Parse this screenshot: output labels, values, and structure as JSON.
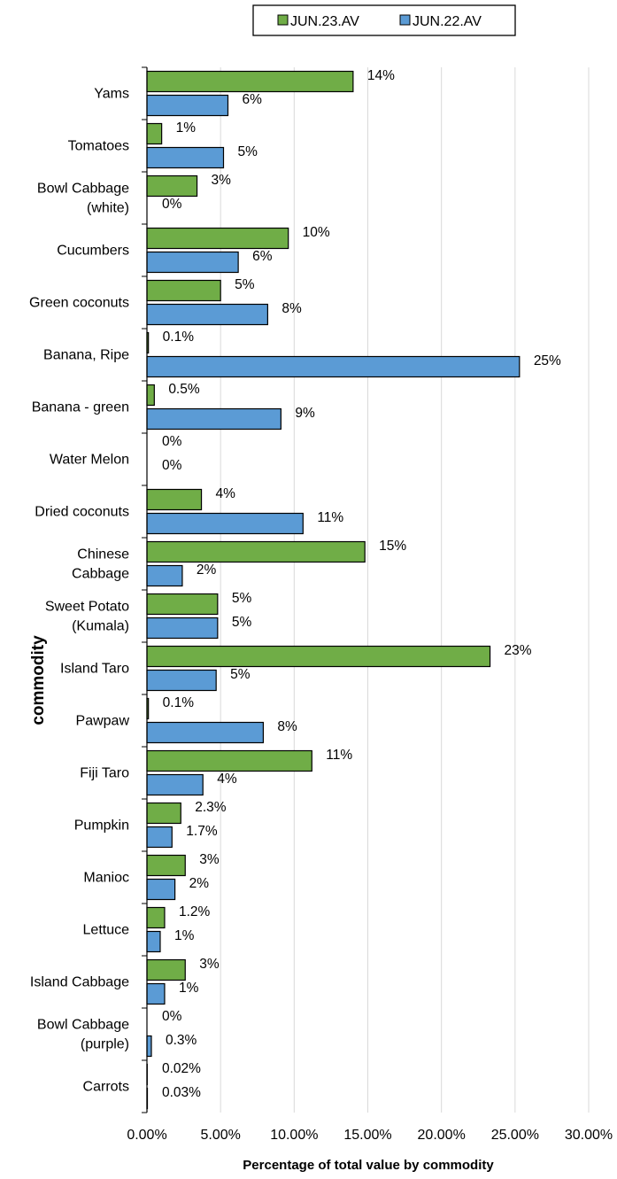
{
  "chart_data": {
    "type": "bar",
    "orientation": "horizontal",
    "categories": [
      [
        "Yams"
      ],
      [
        "Tomatoes"
      ],
      [
        "Bowl Cabbage",
        "(white)"
      ],
      [
        "Cucumbers"
      ],
      [
        "Green coconuts"
      ],
      [
        "Banana, Ripe"
      ],
      [
        "Banana - green"
      ],
      [
        "Water Melon"
      ],
      [
        "Dried coconuts"
      ],
      [
        "Chinese",
        "Cabbage"
      ],
      [
        "Sweet Potato",
        "(Kumala)"
      ],
      [
        "Island Taro"
      ],
      [
        "Pawpaw"
      ],
      [
        "Fiji Taro"
      ],
      [
        "Pumpkin"
      ],
      [
        "Manioc"
      ],
      [
        "Lettuce"
      ],
      [
        "Island Cabbage"
      ],
      [
        "Bowl Cabbage",
        "(purple)"
      ],
      [
        "Carrots"
      ]
    ],
    "series": [
      {
        "name": "JUN.23.AV",
        "color": "#70AD47",
        "values": [
          14.0,
          1.0,
          3.4,
          9.6,
          5.0,
          0.1,
          0.5,
          0.0,
          3.7,
          14.8,
          4.8,
          23.3,
          0.1,
          11.2,
          2.3,
          2.6,
          1.2,
          2.6,
          0.0,
          0.02
        ],
        "labels": [
          "14%",
          "1%",
          "3%",
          "10%",
          "5%",
          "0.1%",
          "0.5%",
          "0%",
          "4%",
          "15%",
          "5%",
          "23%",
          "0.1%",
          "11%",
          "2.3%",
          "3%",
          "1.2%",
          "3%",
          "0%",
          "0.02%"
        ]
      },
      {
        "name": "JUN.22.AV",
        "color": "#5B9BD5",
        "values": [
          5.5,
          5.2,
          0.0,
          6.2,
          8.2,
          25.3,
          9.1,
          0.0,
          10.6,
          2.4,
          4.8,
          4.7,
          7.9,
          3.8,
          1.7,
          1.9,
          0.9,
          1.2,
          0.3,
          0.03
        ],
        "labels": [
          "6%",
          "5%",
          "0%",
          "6%",
          "8%",
          "25%",
          "9%",
          "0%",
          "11%",
          "2%",
          "5%",
          "5%",
          "8%",
          "4%",
          "1.7%",
          "2%",
          "1%",
          "1%",
          "0.3%",
          "0.03%"
        ]
      }
    ],
    "xlim": [
      0,
      30
    ],
    "xticks": [
      0,
      5,
      10,
      15,
      20,
      25,
      30
    ],
    "xtick_labels": [
      "0.00%",
      "5.00%",
      "10.00%",
      "15.00%",
      "20.00%",
      "25.00%",
      "30.00%"
    ],
    "xlabel": "Percentage of total value by commodity",
    "ylabel": "commodity",
    "grid": "vertical",
    "legend": "top"
  }
}
